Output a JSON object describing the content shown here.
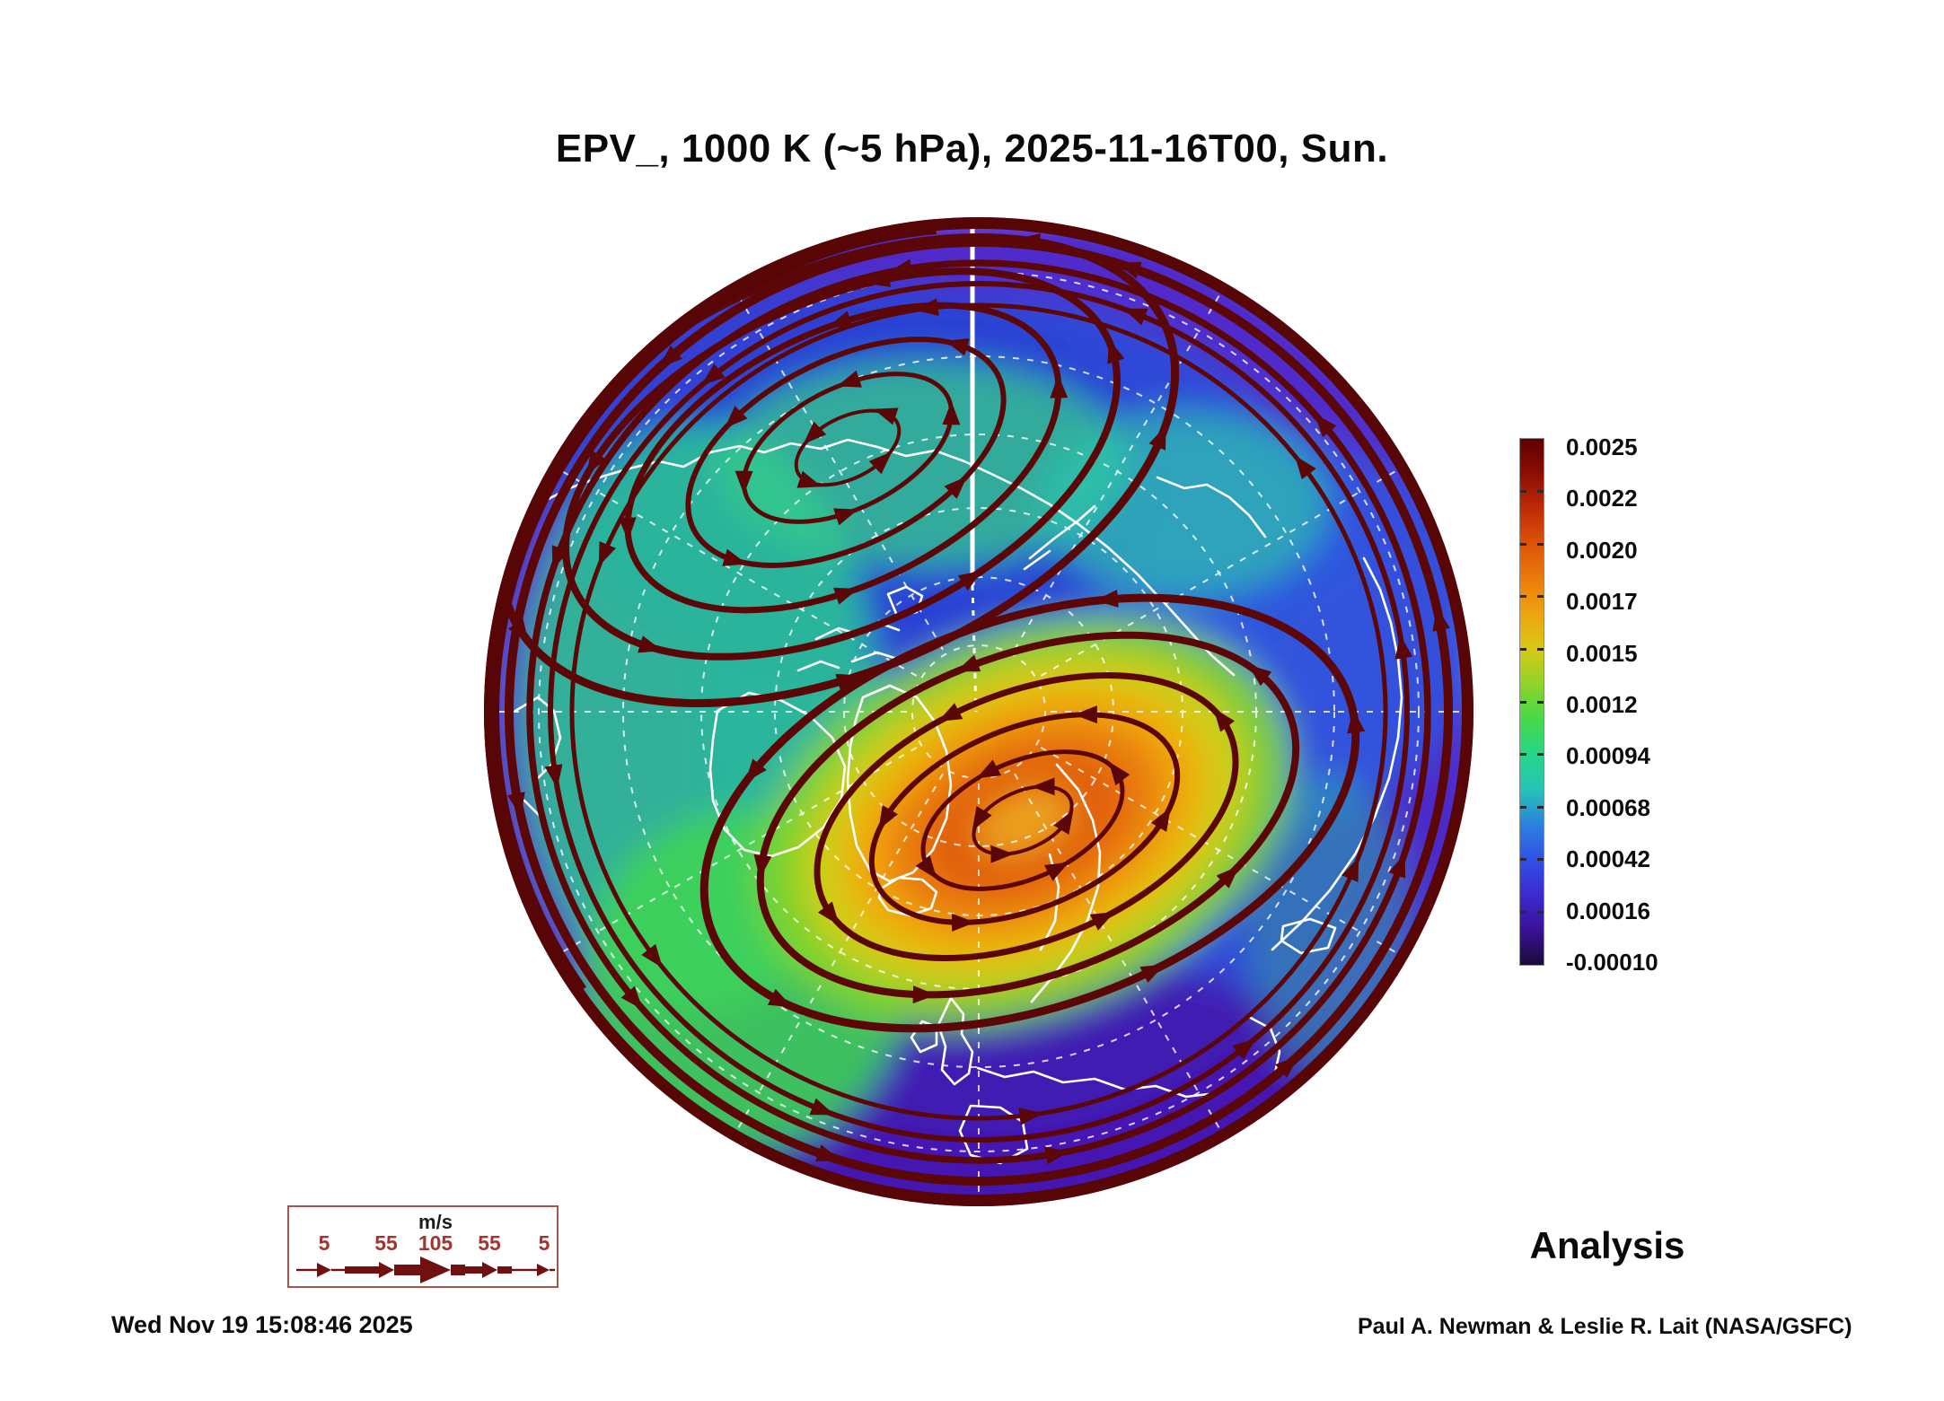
{
  "title": "EPV_, 1000 K (~5 hPa), 2025-11-16T00, Sun.",
  "map": {
    "streamline_color": "#5c0707",
    "rim_color": "#570505",
    "coastline_color": "#ffffff",
    "graticule_color": "#ffffff"
  },
  "colorbar": {
    "tick_labels": [
      "0.0025",
      "0.0022",
      "0.0020",
      "0.0017",
      "0.0015",
      "0.0012",
      "0.00094",
      "0.00068",
      "0.00042",
      "0.00016",
      "-0.00010"
    ],
    "gradient_top_to_bottom": [
      "#5e0000",
      "#8d0e03",
      "#bf2b06",
      "#de540a",
      "#ea7c0c",
      "#eda410",
      "#d8c815",
      "#8ed32a",
      "#46d94a",
      "#27d687",
      "#25c4b4",
      "#2b82dd",
      "#3150e4",
      "#3c2bd0",
      "#3a1196",
      "#1a0b36"
    ]
  },
  "wind_legend": {
    "unit": "m/s",
    "speed_labels": [
      "5",
      "55",
      "105",
      "55",
      "5"
    ],
    "arrow_color": "#701010",
    "number_color": "#a33530",
    "border_color": "#a2564f"
  },
  "footer": {
    "analysis_label": "Analysis",
    "timestamp": "Wed Nov 19 15:08:46 2025",
    "credit": "Paul A. Newman & Leslie R. Lait (NASA/GSFC)"
  }
}
